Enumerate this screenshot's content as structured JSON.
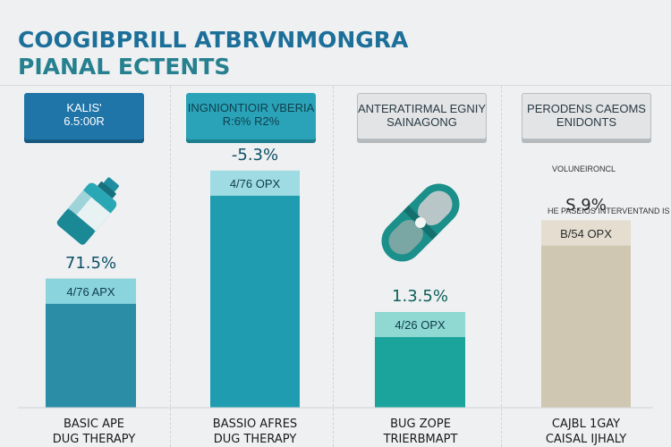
{
  "title": {
    "line1": "COOGIBPRILL ATBRVNMONGRA",
    "line2": "PIANAL ECTENTS"
  },
  "headers": [
    {
      "line1": "KALIS'",
      "line2": "6.5:00R"
    },
    {
      "line1": "INGNIONTIOIR VBERIA",
      "line2": "R:6% R2%"
    },
    {
      "line1": "ANTERATIRMAL EGNIY",
      "line2": "SAINAGONG"
    },
    {
      "line1": "PERODENS CAEOMS",
      "line2": "ENIDONTS"
    }
  ],
  "notes": {
    "col4_top": "VOLUNEIRONCL",
    "col4_mid": "HE PASEIOS INTERVENTAND IS"
  },
  "icons": [
    "medicine-bottle-icon",
    "capsule-icon"
  ],
  "colors": {
    "bar1": "#2b8ea6",
    "bar1_band": "#8ad4de",
    "bar2": "#1f9cb0",
    "bar2_band": "#9fdbe2",
    "bar3": "#1aa49c",
    "bar3_band": "#8fd9d2",
    "bar4": "#d0c7b3",
    "bar4_band": "#e4ddd0"
  },
  "chart_data": {
    "type": "bar",
    "title": "COOGIBPRILL ATBRVNMONGRA PIANAL ECTENTS",
    "categories": [
      [
        "BASIC APE",
        "DUG THERAPY"
      ],
      [
        "BASSIO AFRES",
        "DUG THERAPY"
      ],
      [
        "BUG ZOPE",
        "TRIERBMAPT"
      ],
      [
        "CAJBL 1GAY",
        "CAISAL IJHALY"
      ]
    ],
    "top_labels": [
      "71.5%",
      "-5.3%",
      "1.3.5%",
      "S.9%"
    ],
    "band_labels": [
      "4/76 APX",
      "4/76 OPX",
      "4/26 OPX",
      "B/54 OPX"
    ],
    "values": [
      31,
      57,
      23,
      45
    ],
    "ylim": [
      0,
      60
    ]
  }
}
